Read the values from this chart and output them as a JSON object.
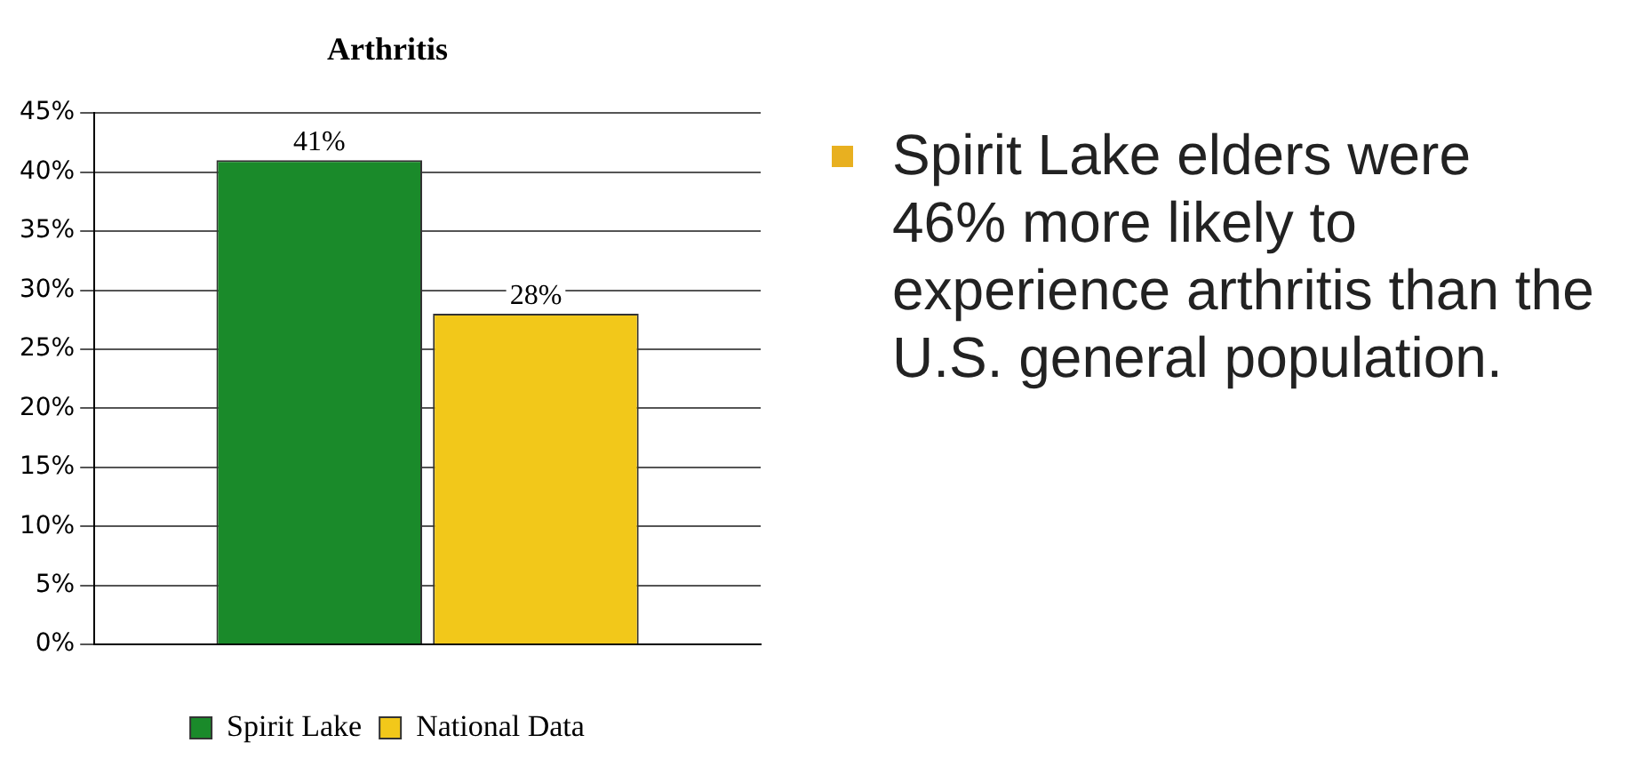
{
  "chart_data": {
    "type": "bar",
    "title": "Arthritis",
    "categories": [
      null
    ],
    "series": [
      {
        "name": "Spirit Lake",
        "color": "#1a8a2a",
        "values": [
          41
        ],
        "value_labels": [
          "41%"
        ]
      },
      {
        "name": "National Data",
        "color": "#f2c81a",
        "values": [
          28
        ],
        "value_labels": [
          "28%"
        ]
      }
    ],
    "ylim": [
      0,
      45
    ],
    "yticks": [
      {
        "value": 0,
        "label": "0%"
      },
      {
        "value": 5,
        "label": "5%"
      },
      {
        "value": 10,
        "label": "10%"
      },
      {
        "value": 15,
        "label": "15%"
      },
      {
        "value": 20,
        "label": "20%"
      },
      {
        "value": 25,
        "label": "25%"
      },
      {
        "value": 30,
        "label": "30%"
      },
      {
        "value": 35,
        "label": "35%"
      },
      {
        "value": 40,
        "label": "40%"
      },
      {
        "value": 45,
        "label": "45%"
      }
    ],
    "grid": "y",
    "legend": "bottom",
    "annotations": [
      "Spirit Lake elders were 46% more likely to experience arthritis than the U.S. general population."
    ]
  }
}
